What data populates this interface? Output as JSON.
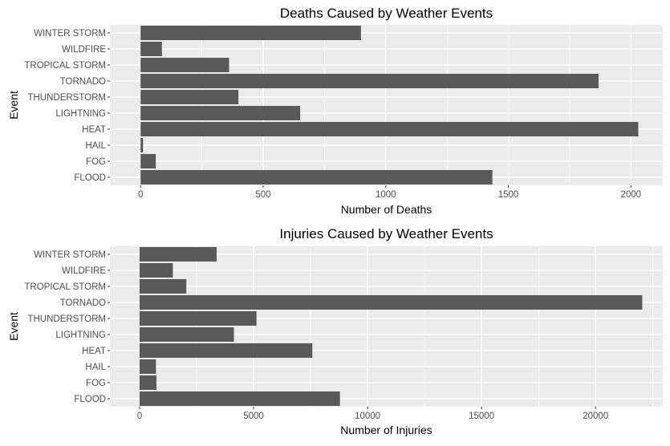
{
  "chart_data": [
    {
      "type": "bar",
      "orientation": "horizontal",
      "title": "Deaths Caused by Weather Events",
      "xlabel": "Number of Deaths",
      "ylabel": "Event",
      "categories": [
        "FLOOD",
        "FOG",
        "HAIL",
        "HEAT",
        "LIGHTNING",
        "THUNDERSTORM",
        "TORNADO",
        "TROPICAL STORM",
        "WILDFIRE",
        "WINTER STORM"
      ],
      "values": [
        1435,
        62,
        10,
        2030,
        651,
        399,
        1868,
        361,
        87,
        899
      ],
      "ticks": [
        0,
        500,
        1000,
        1500,
        2000
      ],
      "xlim": [
        -125,
        2130
      ],
      "grid": true,
      "colors": {
        "bar": "#595959",
        "panel": "#ebebeb",
        "grid": "#ffffff"
      }
    },
    {
      "type": "bar",
      "orientation": "horizontal",
      "title": "Injuries Caused by Weather Events",
      "xlabel": "Number of Injuries",
      "ylabel": "Event",
      "categories": [
        "FLOOD",
        "FOG",
        "HAIL",
        "HEAT",
        "LIGHTNING",
        "THUNDERSTORM",
        "TORNADO",
        "TROPICAL STORM",
        "WILDFIRE",
        "WINTER STORM"
      ],
      "values": [
        8790,
        740,
        720,
        7580,
        4140,
        5130,
        22050,
        2050,
        1460,
        3380
      ],
      "ticks": [
        0,
        5000,
        10000,
        15000,
        20000
      ],
      "xlim": [
        -1300,
        22950
      ],
      "grid": true,
      "colors": {
        "bar": "#595959",
        "panel": "#ebebeb",
        "grid": "#ffffff"
      }
    }
  ]
}
